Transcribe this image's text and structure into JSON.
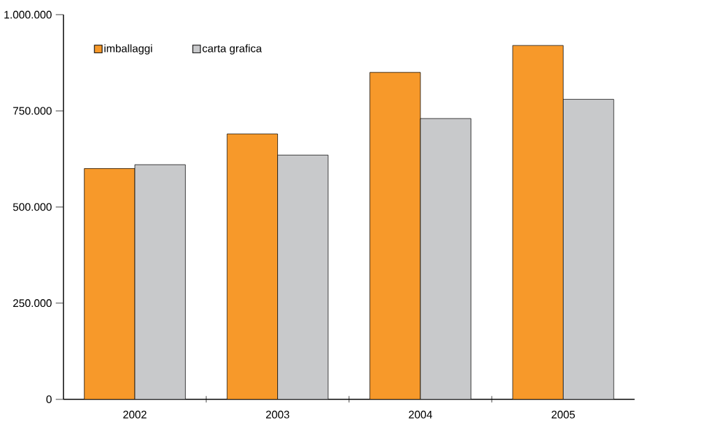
{
  "chart_data": {
    "type": "bar",
    "categories": [
      "2002",
      "2003",
      "2004",
      "2005"
    ],
    "series": [
      {
        "name": "imballaggi",
        "color": "#f7992a",
        "values": [
          600000,
          690000,
          850000,
          920000
        ]
      },
      {
        "name": "carta grafica",
        "color": "#c8c9cb",
        "values": [
          610000,
          635000,
          730000,
          780000
        ]
      }
    ],
    "ylim": [
      0,
      1000000
    ],
    "yticks": [
      {
        "value": 0,
        "label": "0"
      },
      {
        "value": 250000,
        "label": "250.000"
      },
      {
        "value": 500000,
        "label": "500.000"
      },
      {
        "value": 750000,
        "label": "750.000"
      },
      {
        "value": 1000000,
        "label": "1.000.000"
      }
    ],
    "legend": "top left"
  }
}
